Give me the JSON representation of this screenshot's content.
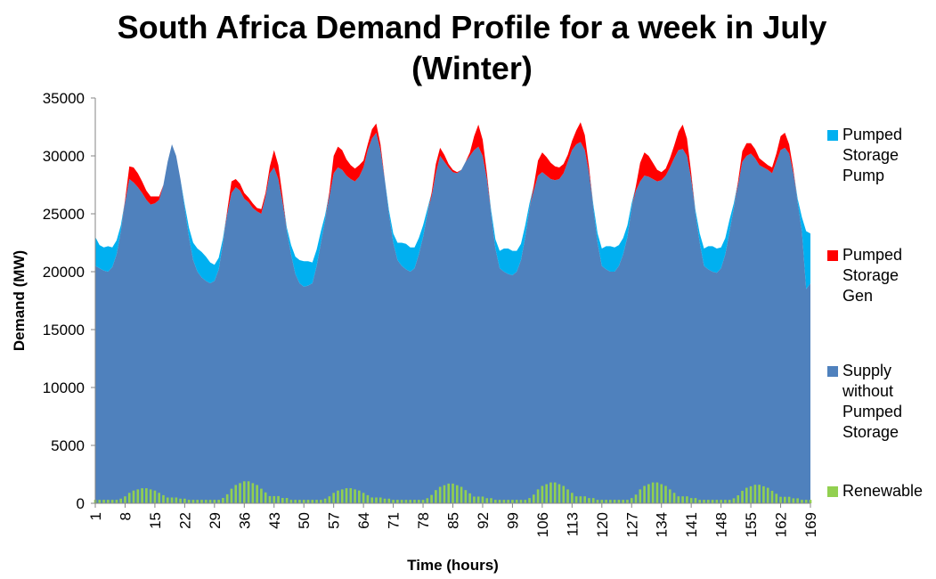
{
  "chart_data": {
    "type": "area",
    "title": "South Africa Demand Profile for a week in July (Winter)",
    "x_label": "Time (hours)",
    "y_label": "Demand (MW)",
    "ylim": [
      0,
      35000
    ],
    "yticks": [
      0,
      5000,
      10000,
      15000,
      20000,
      25000,
      30000,
      35000
    ],
    "xlim": [
      1,
      169
    ],
    "xticks": [
      1,
      8,
      15,
      22,
      29,
      36,
      43,
      50,
      57,
      64,
      71,
      78,
      85,
      92,
      99,
      106,
      113,
      120,
      127,
      134,
      141,
      148,
      155,
      162,
      169
    ],
    "legend": "right",
    "x": [
      1,
      2,
      3,
      4,
      5,
      6,
      7,
      8,
      9,
      10,
      11,
      12,
      13,
      14,
      15,
      16,
      17,
      18,
      19,
      20,
      21,
      22,
      23,
      24,
      25,
      26,
      27,
      28,
      29,
      30,
      31,
      32,
      33,
      34,
      35,
      36,
      37,
      38,
      39,
      40,
      41,
      42,
      43,
      44,
      45,
      46,
      47,
      48,
      49,
      50,
      51,
      52,
      53,
      54,
      55,
      56,
      57,
      58,
      59,
      60,
      61,
      62,
      63,
      64,
      65,
      66,
      67,
      68,
      69,
      70,
      71,
      72,
      73,
      74,
      75,
      76,
      77,
      78,
      79,
      80,
      81,
      82,
      83,
      84,
      85,
      86,
      87,
      88,
      89,
      90,
      91,
      92,
      93,
      94,
      95,
      96,
      97,
      98,
      99,
      100,
      101,
      102,
      103,
      104,
      105,
      106,
      107,
      108,
      109,
      110,
      111,
      112,
      113,
      114,
      115,
      116,
      117,
      118,
      119,
      120,
      121,
      122,
      123,
      124,
      125,
      126,
      127,
      128,
      129,
      130,
      131,
      132,
      133,
      134,
      135,
      136,
      137,
      138,
      139,
      140,
      141,
      142,
      143,
      144,
      145,
      146,
      147,
      148,
      149,
      150,
      151,
      152,
      153,
      154,
      155,
      156,
      157,
      158,
      159,
      160,
      161,
      162,
      163,
      164,
      165,
      166,
      167,
      168,
      169
    ],
    "series": [
      {
        "name": "Pumped Storage Pump",
        "color": "#00b0f0",
        "kind": "stacked-area",
        "values": [
          2500,
          2000,
          2000,
          2200,
          1700,
          1200,
          500,
          0,
          0,
          0,
          0,
          0,
          0,
          0,
          0,
          0,
          0,
          0,
          0,
          0,
          0,
          300,
          800,
          1500,
          2000,
          2200,
          2100,
          1800,
          1400,
          1000,
          400,
          0,
          0,
          0,
          0,
          0,
          0,
          0,
          0,
          0,
          0,
          0,
          0,
          0,
          0,
          300,
          800,
          1500,
          2000,
          2200,
          2100,
          1800,
          1400,
          1000,
          400,
          0,
          0,
          0,
          0,
          0,
          0,
          0,
          0,
          0,
          0,
          0,
          0,
          0,
          0,
          300,
          800,
          1500,
          2000,
          2200,
          2100,
          1800,
          1400,
          1000,
          400,
          0,
          0,
          0,
          0,
          0,
          0,
          0,
          0,
          0,
          0,
          0,
          0,
          0,
          0,
          300,
          800,
          1500,
          2000,
          2200,
          2100,
          1800,
          1400,
          1000,
          400,
          0,
          0,
          0,
          0,
          0,
          0,
          0,
          0,
          0,
          0,
          0,
          0,
          0,
          0,
          300,
          800,
          1500,
          2000,
          2200,
          2100,
          1800,
          1400,
          1000,
          400,
          0,
          0,
          0,
          0,
          0,
          0,
          0,
          0,
          0,
          0,
          0,
          0,
          0,
          0,
          300,
          800,
          1500,
          2000,
          2200,
          2100,
          1800,
          1400,
          1000,
          400,
          0,
          0,
          0,
          0,
          0,
          0,
          0,
          0,
          0,
          0,
          0,
          0,
          0,
          0,
          300,
          1200,
          5000,
          4300
        ]
      },
      {
        "name": "Pumped Storage Gen",
        "color": "#ff0000",
        "kind": "stacked-area",
        "values": [
          0,
          0,
          0,
          0,
          0,
          0,
          0,
          200,
          1100,
          1300,
          1200,
          1000,
          800,
          700,
          600,
          300,
          0,
          0,
          0,
          0,
          0,
          0,
          0,
          0,
          0,
          0,
          0,
          0,
          0,
          0,
          0,
          300,
          1000,
          700,
          600,
          500,
          400,
          400,
          300,
          400,
          300,
          600,
          1500,
          1200,
          500,
          0,
          0,
          0,
          0,
          0,
          0,
          0,
          0,
          0,
          0,
          400,
          1500,
          1800,
          1700,
          1400,
          1200,
          1100,
          1000,
          600,
          500,
          800,
          800,
          500,
          0,
          0,
          0,
          0,
          0,
          0,
          0,
          0,
          0,
          0,
          0,
          300,
          800,
          700,
          600,
          300,
          200,
          100,
          0,
          0,
          300,
          1200,
          1900,
          1400,
          500,
          0,
          0,
          0,
          0,
          0,
          0,
          0,
          0,
          0,
          0,
          400,
          1300,
          1700,
          1600,
          1400,
          1200,
          1000,
          800,
          600,
          800,
          1200,
          1700,
          1300,
          500,
          0,
          0,
          0,
          0,
          0,
          0,
          0,
          0,
          0,
          0,
          400,
          1600,
          2000,
          1800,
          1400,
          1000,
          700,
          600,
          800,
          1100,
          1600,
          2100,
          1500,
          500,
          0,
          0,
          0,
          0,
          0,
          0,
          0,
          0,
          0,
          0,
          300,
          900,
          1100,
          900,
          800,
          600,
          500,
          400,
          500,
          700,
          1200,
          1300,
          800,
          300,
          0,
          0,
          0,
          0
        ]
      },
      {
        "name": "Supply without Pumped Storage",
        "color": "#4f81bd",
        "kind": "base-area",
        "values": [
          20500,
          20300,
          20100,
          20000,
          20400,
          21500,
          23500,
          26000,
          28000,
          27700,
          27300,
          26800,
          26200,
          25800,
          25900,
          26200,
          27500,
          29500,
          31000,
          30000,
          28000,
          25500,
          23000,
          21000,
          20000,
          19500,
          19200,
          19000,
          19200,
          20200,
          22500,
          25000,
          26800,
          27300,
          27000,
          26300,
          26000,
          25500,
          25200,
          25000,
          26500,
          28500,
          29000,
          28000,
          26000,
          23500,
          21500,
          19800,
          19000,
          18700,
          18800,
          19000,
          20500,
          22500,
          24500,
          26500,
          28500,
          29000,
          28800,
          28300,
          28000,
          27800,
          28200,
          29000,
          30500,
          31500,
          32000,
          30500,
          28000,
          25000,
          22500,
          21000,
          20500,
          20200,
          20000,
          20300,
          21500,
          23000,
          25000,
          26500,
          28500,
          30000,
          29500,
          29000,
          28600,
          28500,
          28800,
          29500,
          30000,
          30500,
          30800,
          30000,
          28000,
          25000,
          22000,
          20300,
          20000,
          19800,
          19700,
          20000,
          21000,
          23000,
          25500,
          27000,
          28300,
          28600,
          28300,
          28000,
          27900,
          28000,
          28500,
          29500,
          30500,
          31000,
          31200,
          30500,
          28500,
          25500,
          22500,
          20500,
          20200,
          20000,
          20000,
          20500,
          21500,
          23000,
          25500,
          27000,
          27800,
          28300,
          28200,
          28000,
          27800,
          27900,
          28300,
          29000,
          29800,
          30500,
          30600,
          30000,
          28000,
          25000,
          22500,
          20500,
          20200,
          20000,
          19900,
          20300,
          21500,
          23500,
          25500,
          27500,
          29500,
          30000,
          30200,
          29800,
          29200,
          29000,
          28800,
          28500,
          29500,
          30500,
          30700,
          30200,
          28500,
          26000,
          23500,
          18500,
          19000
        ]
      },
      {
        "name": "Renewable",
        "color": "#92d050",
        "kind": "bar",
        "values": [
          300,
          300,
          300,
          300,
          300,
          300,
          400,
          600,
          900,
          1100,
          1200,
          1300,
          1300,
          1200,
          1100,
          900,
          700,
          500,
          500,
          500,
          400,
          400,
          300,
          300,
          300,
          300,
          300,
          300,
          300,
          300,
          460,
          780,
          1260,
          1580,
          1740,
          1900,
          1900,
          1740,
          1580,
          1260,
          940,
          620,
          620,
          620,
          460,
          460,
          300,
          300,
          300,
          300,
          300,
          300,
          300,
          300,
          400,
          600,
          900,
          1100,
          1200,
          1300,
          1300,
          1200,
          1100,
          900,
          700,
          500,
          500,
          500,
          400,
          400,
          300,
          300,
          300,
          300,
          300,
          300,
          300,
          300,
          440,
          720,
          1140,
          1420,
          1560,
          1700,
          1700,
          1560,
          1420,
          1140,
          860,
          580,
          580,
          580,
          440,
          440,
          300,
          300,
          300,
          300,
          300,
          300,
          300,
          300,
          450,
          750,
          1200,
          1500,
          1650,
          1800,
          1800,
          1650,
          1500,
          1200,
          900,
          600,
          600,
          600,
          450,
          450,
          300,
          300,
          300,
          300,
          300,
          300,
          300,
          300,
          450,
          750,
          1200,
          1500,
          1650,
          1800,
          1800,
          1650,
          1500,
          1200,
          900,
          600,
          600,
          600,
          450,
          450,
          300,
          300,
          300,
          300,
          300,
          300,
          300,
          300,
          430,
          690,
          1080,
          1340,
          1470,
          1600,
          1600,
          1470,
          1340,
          1080,
          820,
          560,
          560,
          560,
          430,
          430,
          300,
          300,
          300
        ]
      }
    ]
  }
}
